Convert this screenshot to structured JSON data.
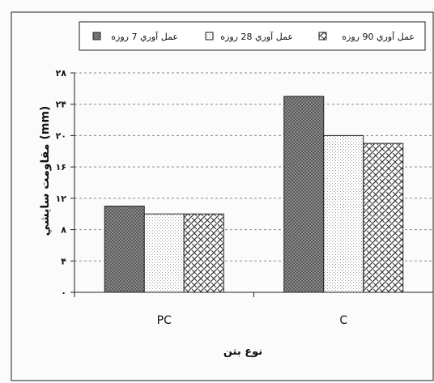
{
  "chart_data": {
    "type": "bar",
    "categories": [
      "PC",
      "C"
    ],
    "series": [
      {
        "name": "عمل آوري 7 روزه",
        "values": [
          11,
          25
        ],
        "color": "#6f6f6f",
        "pattern": "dark-dots"
      },
      {
        "name": "عمل آوري 28 روزه",
        "values": [
          10,
          20
        ],
        "color": "#f4f4f4",
        "pattern": "light-dots"
      },
      {
        "name": "عمل آوري 90 روزه",
        "values": [
          10,
          19
        ],
        "color": "#ffffff",
        "pattern": "diagonal-weave"
      }
    ],
    "ylim": [
      0,
      28
    ],
    "yticks": [
      "۰",
      "۴",
      "۸",
      "۱۲",
      "۱۶",
      "۲۰",
      "۲۴",
      "۲۸"
    ],
    "ylabel": "مقاومت سايشي (mm)",
    "xlabel": "نوع بتن",
    "title": "",
    "grid": true,
    "legend_position": "top"
  }
}
